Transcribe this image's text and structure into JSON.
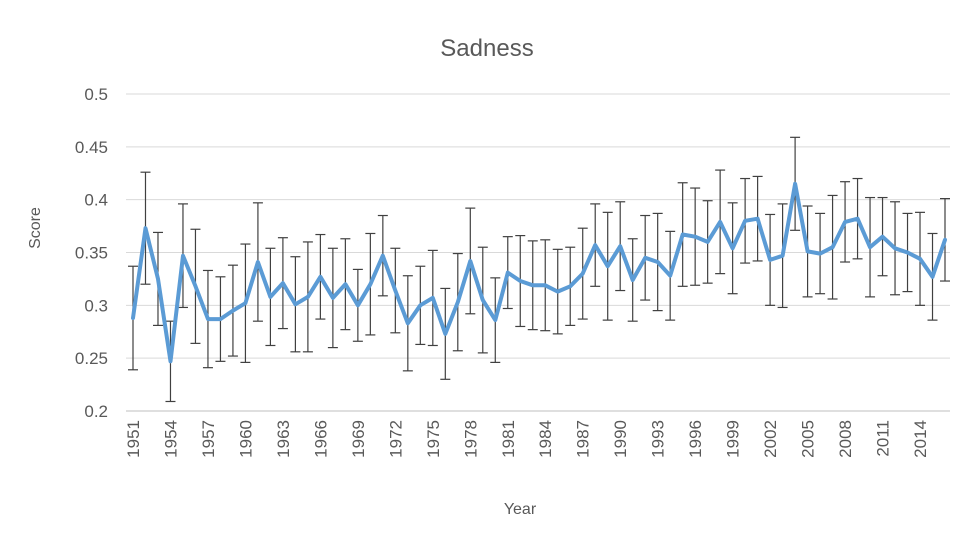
{
  "chart_data": {
    "type": "line",
    "title": "Sadness",
    "xlabel": "Year",
    "ylabel": "Score",
    "ylim": [
      0.2,
      0.5
    ],
    "yticks": [
      0.2,
      0.25,
      0.3,
      0.35,
      0.4,
      0.45,
      0.5
    ],
    "ytick_labels": [
      "0.2",
      "0.25",
      "0.3",
      "0.35",
      "0.4",
      "0.45",
      "0.5"
    ],
    "x": [
      1951,
      1952,
      1953,
      1954,
      1955,
      1956,
      1957,
      1958,
      1959,
      1960,
      1961,
      1962,
      1963,
      1964,
      1965,
      1966,
      1967,
      1968,
      1969,
      1970,
      1971,
      1972,
      1973,
      1974,
      1975,
      1976,
      1977,
      1978,
      1979,
      1980,
      1981,
      1982,
      1983,
      1984,
      1985,
      1986,
      1987,
      1988,
      1989,
      1990,
      1991,
      1992,
      1993,
      1994,
      1995,
      1996,
      1997,
      1998,
      1999,
      2000,
      2001,
      2002,
      2003,
      2004,
      2005,
      2006,
      2007,
      2008,
      2009,
      2010,
      2011,
      2012,
      2013,
      2014,
      2015,
      2016
    ],
    "xtick_labels": [
      "1951",
      "1954",
      "1957",
      "1960",
      "1963",
      "1966",
      "1969",
      "1972",
      "1975",
      "1978",
      "1981",
      "1984",
      "1987",
      "1990",
      "1993",
      "1996",
      "1999",
      "2002",
      "2005",
      "2008",
      "2011",
      "2014"
    ],
    "grid": true,
    "legend": "none",
    "color": "#5b9bd5",
    "series": [
      {
        "values": [
          0.288,
          0.373,
          0.325,
          0.247,
          0.347,
          0.318,
          0.287,
          0.287,
          0.295,
          0.302,
          0.341,
          0.308,
          0.321,
          0.301,
          0.308,
          0.327,
          0.307,
          0.32,
          0.3,
          0.32,
          0.347,
          0.314,
          0.283,
          0.3,
          0.307,
          0.273,
          0.303,
          0.342,
          0.305,
          0.286,
          0.331,
          0.323,
          0.319,
          0.319,
          0.313,
          0.318,
          0.33,
          0.357,
          0.337,
          0.356,
          0.324,
          0.345,
          0.341,
          0.328,
          0.367,
          0.365,
          0.36,
          0.379,
          0.354,
          0.38,
          0.382,
          0.343,
          0.347,
          0.415,
          0.351,
          0.349,
          0.355,
          0.379,
          0.382,
          0.355,
          0.365,
          0.354,
          0.35,
          0.344,
          0.327,
          0.362
        ],
        "error": [
          0.049,
          0.053,
          0.044,
          0.038,
          0.049,
          0.054,
          0.046,
          0.04,
          0.043,
          0.056,
          0.056,
          0.046,
          0.043,
          0.045,
          0.052,
          0.04,
          0.047,
          0.043,
          0.034,
          0.048,
          0.038,
          0.04,
          0.045,
          0.037,
          0.045,
          0.043,
          0.046,
          0.05,
          0.05,
          0.04,
          0.034,
          0.043,
          0.042,
          0.043,
          0.04,
          0.037,
          0.043,
          0.039,
          0.051,
          0.042,
          0.039,
          0.04,
          0.046,
          0.042,
          0.049,
          0.046,
          0.039,
          0.049,
          0.043,
          0.04,
          0.04,
          0.043,
          0.049,
          0.044,
          0.043,
          0.038,
          0.049,
          0.038,
          0.038,
          0.047,
          0.037,
          0.044,
          0.037,
          0.044,
          0.041,
          0.039
        ]
      }
    ]
  }
}
